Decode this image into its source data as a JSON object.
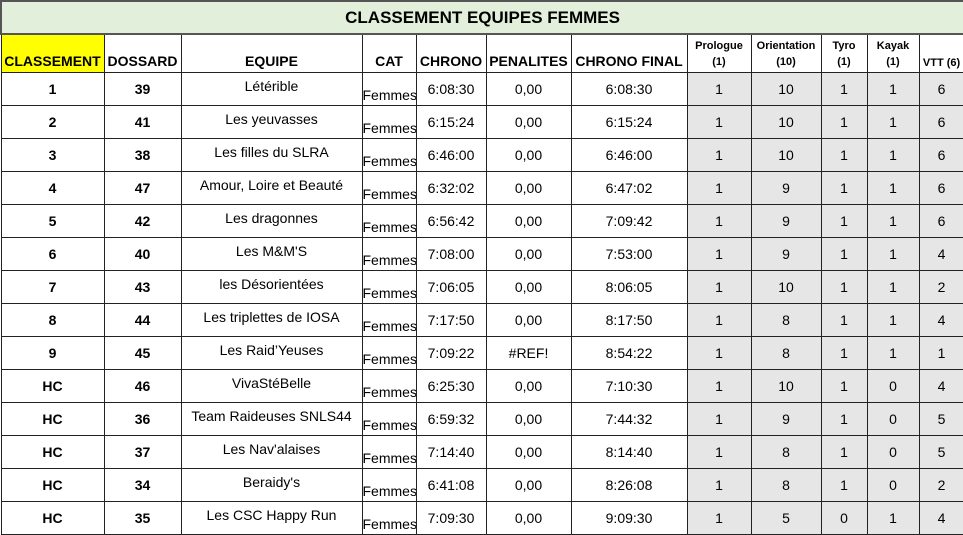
{
  "title": "CLASSEMENT EQUIPES FEMMES",
  "colors": {
    "title_bg": "#e2efda",
    "rank_header_bg": "#ffff00",
    "score_bg": "#e7e6e6"
  },
  "headers": {
    "classement": "CLASSEMENT",
    "dossard": "DOSSARD",
    "equipe": "EQUIPE",
    "cat": "CAT",
    "chrono": "CHRONO",
    "penalites": "PENALITES",
    "chrono_final": "CHRONO FINAL",
    "prologue": "Prologue",
    "prologue_max": "(1)",
    "orientation": "Orientation",
    "orientation_max": "(10)",
    "tyro": "Tyro",
    "tyro_max": "(1)",
    "kayak": "Kayak",
    "kayak_max": "(1)",
    "vtt": "VTT (6)"
  },
  "rows": [
    {
      "classement": "1",
      "dossard": "39",
      "equipe": "Létérible",
      "cat": "Femmes",
      "chrono": "6:08:30",
      "penalites": "0,00",
      "chrono_final": "6:08:30",
      "prologue": "1",
      "orientation": "10",
      "tyro": "1",
      "kayak": "1",
      "vtt": "6"
    },
    {
      "classement": "2",
      "dossard": "41",
      "equipe": "Les yeuvasses",
      "cat": "Femmes",
      "chrono": "6:15:24",
      "penalites": "0,00",
      "chrono_final": "6:15:24",
      "prologue": "1",
      "orientation": "10",
      "tyro": "1",
      "kayak": "1",
      "vtt": "6"
    },
    {
      "classement": "3",
      "dossard": "38",
      "equipe": "Les filles du SLRA",
      "cat": "Femmes",
      "chrono": "6:46:00",
      "penalites": "0,00",
      "chrono_final": "6:46:00",
      "prologue": "1",
      "orientation": "10",
      "tyro": "1",
      "kayak": "1",
      "vtt": "6"
    },
    {
      "classement": "4",
      "dossard": "47",
      "equipe": "Amour, Loire et Beauté",
      "cat": "Femmes",
      "chrono": "6:32:02",
      "penalites": "0,00",
      "chrono_final": "6:47:02",
      "prologue": "1",
      "orientation": "9",
      "tyro": "1",
      "kayak": "1",
      "vtt": "6"
    },
    {
      "classement": "5",
      "dossard": "42",
      "equipe": "Les dragonnes",
      "cat": "Femmes",
      "chrono": "6:56:42",
      "penalites": "0,00",
      "chrono_final": "7:09:42",
      "prologue": "1",
      "orientation": "9",
      "tyro": "1",
      "kayak": "1",
      "vtt": "6"
    },
    {
      "classement": "6",
      "dossard": "40",
      "equipe": "Les M&M'S",
      "cat": "Femmes",
      "chrono": "7:08:00",
      "penalites": "0,00",
      "chrono_final": "7:53:00",
      "prologue": "1",
      "orientation": "9",
      "tyro": "1",
      "kayak": "1",
      "vtt": "4"
    },
    {
      "classement": "7",
      "dossard": "43",
      "equipe": "les Désorientées",
      "cat": "Femmes",
      "chrono": "7:06:05",
      "penalites": "0,00",
      "chrono_final": "8:06:05",
      "prologue": "1",
      "orientation": "10",
      "tyro": "1",
      "kayak": "1",
      "vtt": "2"
    },
    {
      "classement": "8",
      "dossard": "44",
      "equipe": "Les triplettes de IOSA",
      "cat": "Femmes",
      "chrono": "7:17:50",
      "penalites": "0,00",
      "chrono_final": "8:17:50",
      "prologue": "1",
      "orientation": "8",
      "tyro": "1",
      "kayak": "1",
      "vtt": "4"
    },
    {
      "classement": "9",
      "dossard": "45",
      "equipe": "Les Raid’Yeuses",
      "cat": "Femmes",
      "chrono": "7:09:22",
      "penalites": "#REF!",
      "chrono_final": "8:54:22",
      "prologue": "1",
      "orientation": "8",
      "tyro": "1",
      "kayak": "1",
      "vtt": "1"
    },
    {
      "classement": "HC",
      "dossard": "46",
      "equipe": "VivaStéBelle",
      "cat": "Femmes",
      "chrono": "6:25:30",
      "penalites": "0,00",
      "chrono_final": "7:10:30",
      "prologue": "1",
      "orientation": "10",
      "tyro": "1",
      "kayak": "0",
      "vtt": "4"
    },
    {
      "classement": "HC",
      "dossard": "36",
      "equipe": "Team Raideuses SNLS44",
      "cat": "Femmes",
      "chrono": "6:59:32",
      "penalites": "0,00",
      "chrono_final": "7:44:32",
      "prologue": "1",
      "orientation": "9",
      "tyro": "1",
      "kayak": "0",
      "vtt": "5"
    },
    {
      "classement": "HC",
      "dossard": "37",
      "equipe": "Les Nav'alaises",
      "cat": "Femmes",
      "chrono": "7:14:40",
      "penalites": "0,00",
      "chrono_final": "8:14:40",
      "prologue": "1",
      "orientation": "8",
      "tyro": "1",
      "kayak": "0",
      "vtt": "5"
    },
    {
      "classement": "HC",
      "dossard": "34",
      "equipe": "Beraidy's",
      "cat": "Femmes",
      "chrono": "6:41:08",
      "penalites": "0,00",
      "chrono_final": "8:26:08",
      "prologue": "1",
      "orientation": "8",
      "tyro": "1",
      "kayak": "0",
      "vtt": "2"
    },
    {
      "classement": "HC",
      "dossard": "35",
      "equipe": "Les CSC Happy Run",
      "cat": "Femmes",
      "chrono": "7:09:30",
      "penalites": "0,00",
      "chrono_final": "9:09:30",
      "prologue": "1",
      "orientation": "5",
      "tyro": "0",
      "kayak": "1",
      "vtt": "4"
    }
  ]
}
